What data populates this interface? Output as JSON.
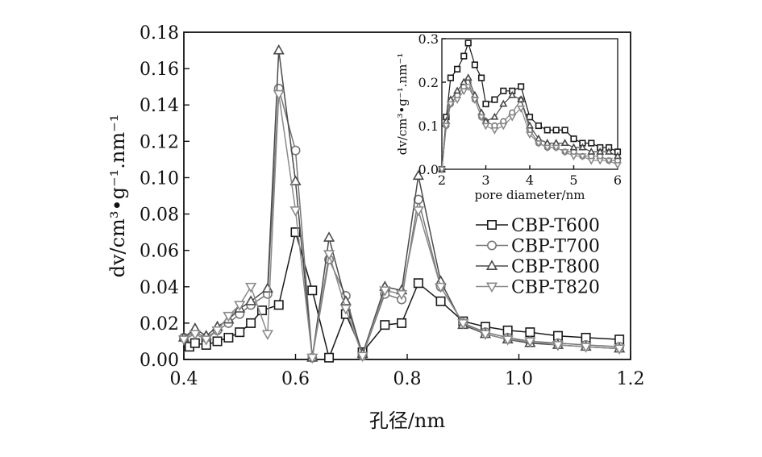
{
  "chart_data": [
    {
      "type": "line",
      "xlabel": "孔径/nm",
      "ylabel": "dv/cm³•g⁻¹.nm⁻¹",
      "xlim": [
        0.4,
        1.2
      ],
      "ylim": [
        0,
        0.18
      ],
      "xticks": [
        "0.4",
        "0.6",
        "0.8",
        "1.0",
        "1.2"
      ],
      "yticks": [
        "0.00",
        "0.02",
        "0.04",
        "0.06",
        "0.08",
        "0.10",
        "0.12",
        "0.14",
        "0.16",
        "0.18"
      ],
      "grid": false,
      "legend_position": "center-right",
      "series": [
        {
          "name": "CBP-T600",
          "marker": "square",
          "x": [
            0.41,
            0.42,
            0.44,
            0.46,
            0.48,
            0.5,
            0.52,
            0.54,
            0.57,
            0.6,
            0.63,
            0.66,
            0.69,
            0.72,
            0.76,
            0.79,
            0.82,
            0.86,
            0.9,
            0.94,
            0.98,
            1.02,
            1.07,
            1.12,
            1.18
          ],
          "y": [
            0.007,
            0.009,
            0.008,
            0.01,
            0.012,
            0.015,
            0.02,
            0.027,
            0.03,
            0.07,
            0.038,
            0.001,
            0.025,
            0.004,
            0.019,
            0.02,
            0.042,
            0.032,
            0.021,
            0.018,
            0.016,
            0.015,
            0.013,
            0.012,
            0.011
          ]
        },
        {
          "name": "CBP-T700",
          "marker": "circle",
          "x": [
            0.4,
            0.42,
            0.44,
            0.46,
            0.48,
            0.5,
            0.52,
            0.55,
            0.57,
            0.6,
            0.63,
            0.66,
            0.69,
            0.72,
            0.76,
            0.79,
            0.82,
            0.86,
            0.9,
            0.94,
            0.98,
            1.02,
            1.07,
            1.12,
            1.18
          ],
          "y": [
            0.012,
            0.015,
            0.012,
            0.016,
            0.02,
            0.025,
            0.03,
            0.036,
            0.149,
            0.115,
            0.001,
            0.055,
            0.035,
            0.002,
            0.036,
            0.033,
            0.088,
            0.04,
            0.02,
            0.015,
            0.012,
            0.01,
            0.009,
            0.008,
            0.007
          ]
        },
        {
          "name": "CBP-T800",
          "marker": "triangle-up",
          "x": [
            0.4,
            0.42,
            0.44,
            0.46,
            0.48,
            0.5,
            0.52,
            0.55,
            0.57,
            0.6,
            0.63,
            0.66,
            0.69,
            0.72,
            0.76,
            0.79,
            0.82,
            0.86,
            0.9,
            0.94,
            0.98,
            1.02,
            1.07,
            1.12,
            1.18
          ],
          "y": [
            0.012,
            0.017,
            0.013,
            0.018,
            0.022,
            0.028,
            0.032,
            0.039,
            0.17,
            0.098,
            0.001,
            0.067,
            0.032,
            0.003,
            0.04,
            0.038,
            0.101,
            0.043,
            0.019,
            0.014,
            0.011,
            0.009,
            0.008,
            0.007,
            0.006
          ]
        },
        {
          "name": "CBP-T820",
          "marker": "triangle-down",
          "x": [
            0.4,
            0.42,
            0.44,
            0.46,
            0.48,
            0.5,
            0.52,
            0.55,
            0.57,
            0.6,
            0.63,
            0.66,
            0.69,
            0.72,
            0.76,
            0.79,
            0.82,
            0.86,
            0.9,
            0.94,
            0.98,
            1.02,
            1.07,
            1.12,
            1.18
          ],
          "y": [
            0.011,
            0.014,
            0.011,
            0.016,
            0.024,
            0.03,
            0.04,
            0.014,
            0.146,
            0.082,
            0.001,
            0.058,
            0.028,
            0.002,
            0.038,
            0.036,
            0.082,
            0.04,
            0.02,
            0.014,
            0.011,
            0.01,
            0.008,
            0.007,
            0.006
          ]
        }
      ]
    },
    {
      "type": "line",
      "xlabel": "pore diameter/nm",
      "ylabel": "dv/cm³•g⁻¹.nm⁻¹",
      "xlim": [
        2,
        6
      ],
      "ylim": [
        0,
        0.3
      ],
      "xticks": [
        "2",
        "3",
        "4",
        "5",
        "6"
      ],
      "yticks": [
        "0.0",
        "0.1",
        "0.2",
        "0.3"
      ],
      "grid": false,
      "series": [
        {
          "name": "CBP-T600",
          "marker": "square",
          "x": [
            2.0,
            2.1,
            2.2,
            2.35,
            2.5,
            2.6,
            2.75,
            2.9,
            3.0,
            3.2,
            3.4,
            3.6,
            3.8,
            4.0,
            4.2,
            4.4,
            4.6,
            4.8,
            5.0,
            5.2,
            5.4,
            5.6,
            5.8,
            6.0
          ],
          "y": [
            0.0,
            0.12,
            0.21,
            0.23,
            0.26,
            0.29,
            0.24,
            0.21,
            0.15,
            0.16,
            0.18,
            0.18,
            0.19,
            0.12,
            0.1,
            0.09,
            0.09,
            0.09,
            0.07,
            0.06,
            0.06,
            0.05,
            0.05,
            0.04
          ]
        },
        {
          "name": "CBP-T700",
          "marker": "circle",
          "x": [
            2.0,
            2.1,
            2.2,
            2.35,
            2.5,
            2.6,
            2.75,
            2.9,
            3.0,
            3.2,
            3.4,
            3.6,
            3.8,
            4.0,
            4.2,
            4.4,
            4.6,
            4.8,
            5.0,
            5.2,
            5.4,
            5.6,
            5.8,
            6.0
          ],
          "y": [
            0.0,
            0.1,
            0.15,
            0.17,
            0.19,
            0.2,
            0.16,
            0.12,
            0.11,
            0.1,
            0.11,
            0.13,
            0.16,
            0.09,
            0.06,
            0.05,
            0.05,
            0.04,
            0.04,
            0.03,
            0.03,
            0.03,
            0.02,
            0.02
          ]
        },
        {
          "name": "CBP-T800",
          "marker": "triangle-up",
          "x": [
            2.0,
            2.1,
            2.2,
            2.35,
            2.5,
            2.6,
            2.75,
            2.9,
            3.0,
            3.2,
            3.4,
            3.6,
            3.8,
            4.0,
            4.2,
            4.4,
            4.6,
            4.8,
            5.0,
            5.2,
            5.4,
            5.6,
            5.8,
            6.0
          ],
          "y": [
            0.0,
            0.11,
            0.16,
            0.18,
            0.2,
            0.21,
            0.17,
            0.13,
            0.11,
            0.12,
            0.15,
            0.17,
            0.16,
            0.1,
            0.07,
            0.06,
            0.06,
            0.06,
            0.05,
            0.05,
            0.04,
            0.04,
            0.04,
            0.03
          ]
        },
        {
          "name": "CBP-T820",
          "marker": "triangle-down",
          "x": [
            2.0,
            2.1,
            2.2,
            2.35,
            2.5,
            2.6,
            2.75,
            2.9,
            3.0,
            3.2,
            3.4,
            3.6,
            3.8,
            4.0,
            4.2,
            4.4,
            4.6,
            4.8,
            5.0,
            5.2,
            5.4,
            5.6,
            5.8,
            6.0
          ],
          "y": [
            0.0,
            0.1,
            0.15,
            0.16,
            0.18,
            0.19,
            0.16,
            0.12,
            0.1,
            0.09,
            0.1,
            0.12,
            0.14,
            0.08,
            0.06,
            0.05,
            0.05,
            0.04,
            0.03,
            0.03,
            0.02,
            0.02,
            0.02,
            0.01
          ]
        }
      ]
    }
  ],
  "colors": {
    "CBP-T600": "#1a1a1a",
    "CBP-T700": "#777777",
    "CBP-T800": "#4a4a4a",
    "CBP-T820": "#8a8a8a",
    "axis": "#111111"
  }
}
